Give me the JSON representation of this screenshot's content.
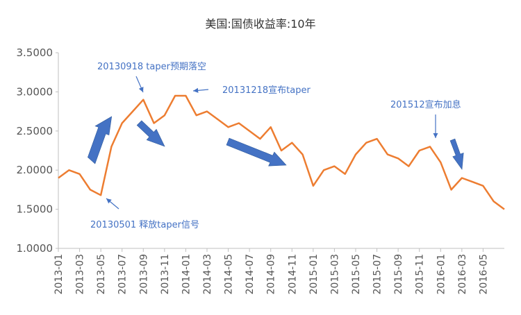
{
  "chart_data": {
    "type": "line",
    "title": "美国:国债收益率:10年",
    "xlabel": "",
    "ylabel": "",
    "ylim": [
      1.0,
      3.5
    ],
    "y_ticks": [
      "1.0000",
      "1.5000",
      "2.0000",
      "2.5000",
      "3.0000",
      "3.5000"
    ],
    "x_ticks": [
      "2013-01",
      "2013-03",
      "2013-05",
      "2013-07",
      "2013-09",
      "2013-11",
      "2014-01",
      "2014-03",
      "2014-05",
      "2014-07",
      "2014-09",
      "2014-11",
      "2015-01",
      "2015-03",
      "2015-05",
      "2015-07",
      "2015-09",
      "2015-11",
      "2016-01",
      "2016-03",
      "2016-05"
    ],
    "grid": false,
    "legend": "none",
    "line_color": "#ED7D31",
    "annotation_color": "#4472C4",
    "series": [
      {
        "name": "",
        "x": [
          "2013-01",
          "2013-02",
          "2013-03",
          "2013-04",
          "2013-05",
          "2013-06",
          "2013-07",
          "2013-08",
          "2013-09",
          "2013-10",
          "2013-11",
          "2013-12",
          "2014-01",
          "2014-02",
          "2014-03",
          "2014-04",
          "2014-05",
          "2014-06",
          "2014-07",
          "2014-08",
          "2014-09",
          "2014-10",
          "2014-11",
          "2014-12",
          "2015-01",
          "2015-02",
          "2015-03",
          "2015-04",
          "2015-05",
          "2015-06",
          "2015-07",
          "2015-08",
          "2015-09",
          "2015-10",
          "2015-11",
          "2015-12",
          "2016-01",
          "2016-02",
          "2016-03",
          "2016-04",
          "2016-05",
          "2016-06",
          "2016-07"
        ],
        "values": [
          1.9,
          2.0,
          1.95,
          1.75,
          1.68,
          2.3,
          2.6,
          2.75,
          2.9,
          2.6,
          2.7,
          2.95,
          2.95,
          2.7,
          2.75,
          2.65,
          2.55,
          2.6,
          2.5,
          2.4,
          2.55,
          2.25,
          2.35,
          2.2,
          1.8,
          2.0,
          2.05,
          1.95,
          2.2,
          2.35,
          2.4,
          2.2,
          2.15,
          2.05,
          2.25,
          2.3,
          2.1,
          1.75,
          1.9,
          1.85,
          1.8,
          1.6,
          1.5
        ]
      }
    ],
    "annotations": [
      {
        "id": "taper-expectation",
        "text": "20130918 taper预期落空"
      },
      {
        "id": "taper-announced",
        "text": "20131218宣布taper"
      },
      {
        "id": "rate-hike",
        "text": "201512宣布加息"
      },
      {
        "id": "taper-signal",
        "text": "20130501 释放taper信号"
      }
    ]
  }
}
